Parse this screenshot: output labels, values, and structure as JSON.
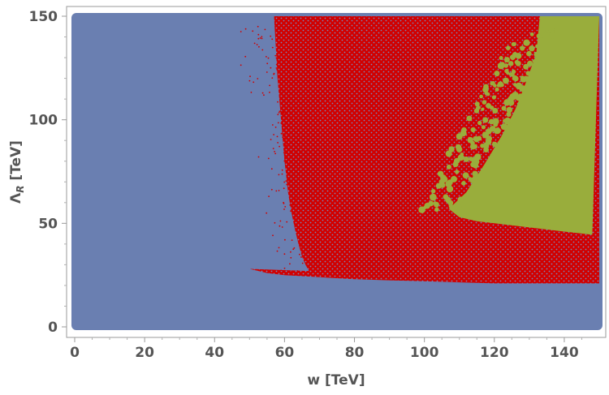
{
  "chart_data": {
    "type": "scatter",
    "title": "",
    "xlabel": "w [TeV]",
    "ylabel_symbol": "Λ",
    "ylabel_sub": "R",
    "ylabel_unit": " [TeV]",
    "xlim": [
      0,
      150
    ],
    "ylim": [
      0,
      150
    ],
    "xticks": [
      0,
      20,
      40,
      60,
      80,
      100,
      120,
      140
    ],
    "yticks": [
      0,
      50,
      100,
      150
    ],
    "grid": false,
    "legend": "none",
    "series": [
      {
        "color": "#6a7fb1",
        "region": "all sampled points",
        "x_range": [
          0,
          150
        ],
        "y_range": [
          0,
          150
        ]
      },
      {
        "color": "#d10000",
        "lower_edge": [
          [
            50,
            28
          ],
          [
            55,
            26
          ],
          [
            60,
            25
          ],
          [
            70,
            24
          ],
          [
            80,
            23
          ],
          [
            90,
            22.5
          ],
          [
            100,
            22
          ],
          [
            110,
            21.5
          ],
          [
            120,
            21
          ],
          [
            130,
            21
          ],
          [
            150,
            21
          ]
        ],
        "left_edge": [
          [
            57,
            150
          ],
          [
            58,
            120
          ],
          [
            59,
            100
          ],
          [
            60,
            80
          ],
          [
            61,
            65
          ],
          [
            62,
            55
          ],
          [
            63,
            47
          ],
          [
            64,
            40
          ],
          [
            65,
            34
          ],
          [
            66,
            30
          ],
          [
            67,
            27
          ]
        ]
      },
      {
        "color": "#99ad3c",
        "lower_edge": [
          [
            107,
            57
          ],
          [
            110,
            53
          ],
          [
            115,
            51
          ],
          [
            120,
            50
          ],
          [
            130,
            48
          ],
          [
            140,
            46
          ],
          [
            148,
            44.5
          ]
        ],
        "left_edge": [
          [
            107,
            57
          ],
          [
            112,
            65
          ],
          [
            117,
            78
          ],
          [
            122,
            92
          ],
          [
            126,
            105
          ],
          [
            129,
            118
          ],
          [
            132,
            132
          ],
          [
            133,
            150
          ]
        ]
      }
    ]
  }
}
